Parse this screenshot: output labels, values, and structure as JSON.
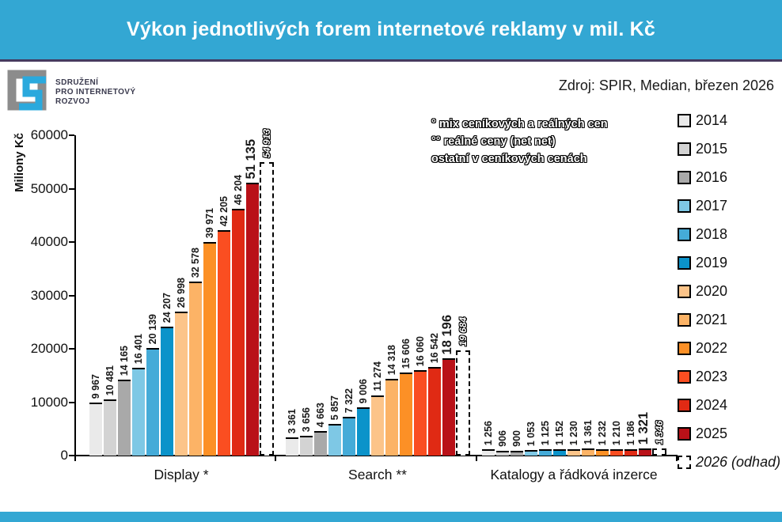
{
  "header": {
    "title": "Výkon jednotlivých forem internetové reklamy v mil. Kč"
  },
  "source_label": "Zdroj: SPIR, Median, březen 2026",
  "logo": {
    "lines": [
      "SDRUŽENÍ",
      "PRO INTERNETOVÝ",
      "ROZVOJ"
    ]
  },
  "notes": [
    "° mix ceníkových a reálných cen",
    "°° reálné ceny (net net)",
    "ostatní v ceníkových cenách"
  ],
  "chart_data": {
    "type": "bar",
    "title": "Výkon jednotlivých forem internetové reklamy v mil. Kč",
    "xlabel": "",
    "ylabel": "Miliony Kč",
    "ylim": [
      0,
      60000
    ],
    "ytick_step": 10000,
    "grid": false,
    "legend_position": "right",
    "categories": [
      "Display *",
      "Search **",
      "Katalogy a řádková inzerce"
    ],
    "series": [
      {
        "name": "2014",
        "color": "#eaeaea",
        "values": [
          9967,
          3361,
          1256
        ]
      },
      {
        "name": "2015",
        "color": "#d3d3d3",
        "values": [
          10481,
          3656,
          906
        ]
      },
      {
        "name": "2016",
        "color": "#a9a9a9",
        "values": [
          14165,
          4663,
          900
        ]
      },
      {
        "name": "2017",
        "color": "#7ec8e5",
        "values": [
          16401,
          5857,
          1053
        ]
      },
      {
        "name": "2018",
        "color": "#45abd8",
        "values": [
          20139,
          7322,
          1125
        ]
      },
      {
        "name": "2019",
        "color": "#0b93ca",
        "values": [
          24207,
          9006,
          1152
        ]
      },
      {
        "name": "2020",
        "color": "#fcc489",
        "values": [
          26998,
          11274,
          1230
        ]
      },
      {
        "name": "2021",
        "color": "#fcb366",
        "values": [
          32578,
          14318,
          1361
        ]
      },
      {
        "name": "2022",
        "color": "#fc9026",
        "values": [
          39971,
          15606,
          1232
        ]
      },
      {
        "name": "2023",
        "color": "#fa4e21",
        "values": [
          42205,
          16060,
          1210
        ]
      },
      {
        "name": "2024",
        "color": "#e02a14",
        "values": [
          46204,
          16542,
          1186
        ]
      },
      {
        "name": "2025",
        "color": "#b91118",
        "values": [
          51135,
          18196,
          1321
        ],
        "bold": true
      },
      {
        "name": "2026 (odhad)",
        "color": "#ffffff",
        "values": [
          54913,
          19684,
          1346
        ],
        "estimate": true
      }
    ]
  }
}
